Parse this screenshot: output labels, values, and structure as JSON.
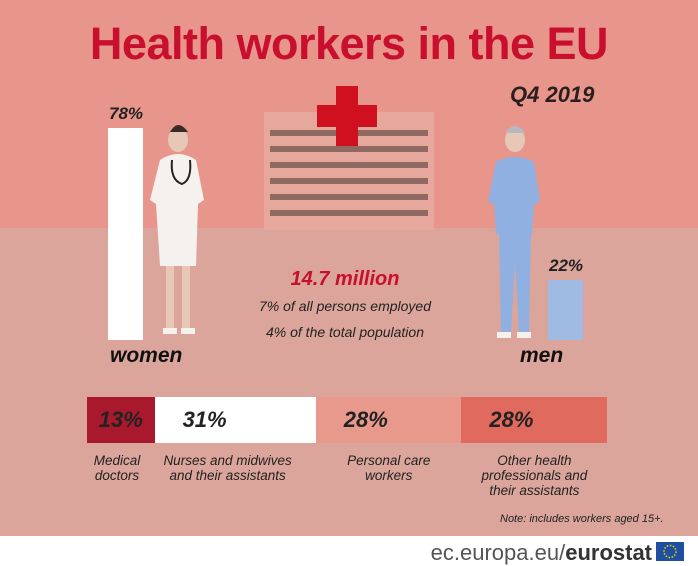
{
  "title": "Health workers in the EU",
  "subtitle": "Q4 2019",
  "total": "14.7 million",
  "notes": [
    "7% of all persons employed",
    "4% of the total population"
  ],
  "chart_data": [
    {
      "type": "bar",
      "categories": [
        "women",
        "men"
      ],
      "values": [
        78,
        22
      ],
      "value_labels": [
        "78%",
        "22%"
      ],
      "colors": [
        "#ffffff",
        "#9fbbe3"
      ]
    },
    {
      "type": "stacked-bar",
      "categories": [
        "Medical doctors",
        "Nurses and midwives and their assistants",
        "Personal care workers",
        "Other health professionals and their assistants"
      ],
      "values": [
        13,
        31,
        28,
        28
      ],
      "value_labels": [
        "13%",
        "31%",
        "28%",
        "28%"
      ],
      "colors": [
        "#a8192e",
        "#ffffff",
        "#e8998c",
        "#e06a5e"
      ]
    }
  ],
  "footnote": "Note: includes workers aged 15+.",
  "source": {
    "domain": "ec.europa.eu/",
    "brand": "eurostat"
  }
}
